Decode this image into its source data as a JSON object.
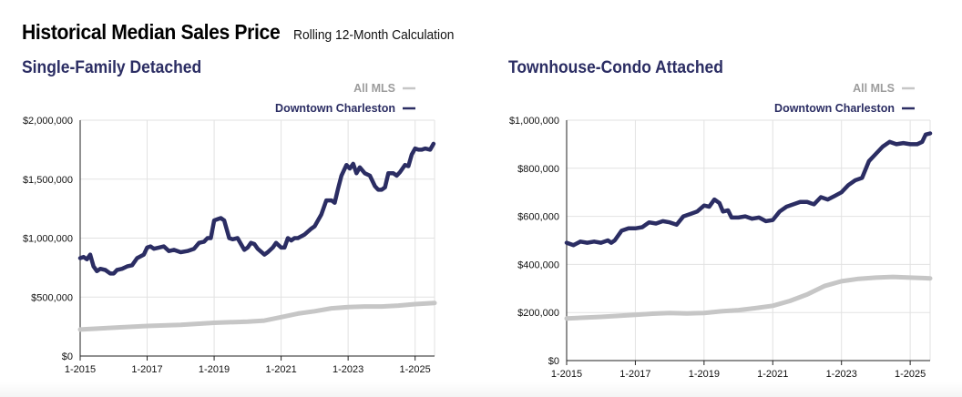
{
  "header": {
    "title": "Historical Median Sales Price",
    "subtitle": "Rolling 12-Month Calculation"
  },
  "colors": {
    "downtown": "#2b2d63",
    "all_mls": "#c6c6c6",
    "grid": "#e2e2e2",
    "axis": "#222222"
  },
  "chart_data": [
    {
      "type": "line",
      "title": "Single-Family Detached",
      "x_labels": [
        "1-2015",
        "1-2017",
        "1-2019",
        "1-2021",
        "1-2023",
        "1-2025"
      ],
      "x_tick_years": [
        2015,
        2017,
        2019,
        2021,
        2023,
        2025
      ],
      "xlim": [
        2015.0,
        2025.58
      ],
      "ylim": [
        0,
        2000000
      ],
      "y_ticks": [
        0,
        500000,
        1000000,
        1500000,
        2000000
      ],
      "y_tick_labels": [
        "$0",
        "$500,000",
        "$1,000,000",
        "$1,500,000",
        "$2,000,000"
      ],
      "legend": [
        {
          "name": "All MLS",
          "color": "#c6c6c6"
        },
        {
          "name": "Downtown Charleston",
          "color": "#2b2d63"
        }
      ],
      "series": [
        {
          "name": "Downtown Charleston",
          "color": "#2b2d63",
          "x": [
            2015.0,
            2015.1,
            2015.2,
            2015.3,
            2015.4,
            2015.5,
            2015.6,
            2015.75,
            2015.9,
            2016.0,
            2016.1,
            2016.25,
            2016.4,
            2016.55,
            2016.7,
            2016.9,
            2017.0,
            2017.1,
            2017.2,
            2017.35,
            2017.5,
            2017.65,
            2017.8,
            2018.0,
            2018.2,
            2018.4,
            2018.55,
            2018.7,
            2018.8,
            2018.9,
            2019.0,
            2019.1,
            2019.2,
            2019.3,
            2019.45,
            2019.55,
            2019.7,
            2019.8,
            2019.9,
            2020.0,
            2020.1,
            2020.2,
            2020.3,
            2020.5,
            2020.6,
            2020.75,
            2020.85,
            2021.0,
            2021.1,
            2021.2,
            2021.3,
            2021.4,
            2021.5,
            2021.7,
            2021.9,
            2022.0,
            2022.2,
            2022.35,
            2022.5,
            2022.6,
            2022.7,
            2022.8,
            2022.95,
            2023.05,
            2023.15,
            2023.25,
            2023.35,
            2023.5,
            2023.65,
            2023.8,
            2023.9,
            2024.0,
            2024.1,
            2024.2,
            2024.35,
            2024.45,
            2024.55,
            2024.7,
            2024.8,
            2024.9,
            2025.0,
            2025.1,
            2025.2,
            2025.3,
            2025.45,
            2025.55
          ],
          "values": [
            830000,
            840000,
            820000,
            860000,
            760000,
            720000,
            740000,
            730000,
            700000,
            700000,
            730000,
            740000,
            760000,
            770000,
            830000,
            860000,
            920000,
            930000,
            910000,
            920000,
            930000,
            890000,
            900000,
            880000,
            890000,
            910000,
            960000,
            970000,
            1000000,
            1000000,
            1150000,
            1160000,
            1170000,
            1150000,
            1000000,
            990000,
            1000000,
            950000,
            900000,
            920000,
            960000,
            950000,
            910000,
            860000,
            880000,
            920000,
            960000,
            920000,
            920000,
            1000000,
            980000,
            1000000,
            1000000,
            1030000,
            1080000,
            1100000,
            1200000,
            1320000,
            1320000,
            1300000,
            1420000,
            1530000,
            1620000,
            1590000,
            1630000,
            1550000,
            1600000,
            1550000,
            1530000,
            1440000,
            1410000,
            1410000,
            1430000,
            1550000,
            1550000,
            1530000,
            1560000,
            1620000,
            1610000,
            1710000,
            1760000,
            1750000,
            1750000,
            1760000,
            1750000,
            1800000
          ]
        },
        {
          "name": "All MLS",
          "color": "#c6c6c6",
          "x": [
            2015.0,
            2016.0,
            2017.0,
            2018.0,
            2019.0,
            2020.0,
            2020.5,
            2021.0,
            2021.5,
            2022.0,
            2022.5,
            2023.0,
            2023.5,
            2024.0,
            2024.5,
            2025.0,
            2025.58
          ],
          "values": [
            225000,
            240000,
            255000,
            265000,
            282000,
            292000,
            300000,
            330000,
            360000,
            380000,
            405000,
            415000,
            420000,
            420000,
            428000,
            440000,
            450000
          ]
        }
      ]
    },
    {
      "type": "line",
      "title": "Townhouse-Condo Attached",
      "x_labels": [
        "1-2015",
        "1-2017",
        "1-2019",
        "1-2021",
        "1-2023",
        "1-2025"
      ],
      "x_tick_years": [
        2015,
        2017,
        2019,
        2021,
        2023,
        2025
      ],
      "xlim": [
        2015.0,
        2025.58
      ],
      "ylim": [
        0,
        1000000
      ],
      "y_ticks": [
        0,
        200000,
        400000,
        600000,
        800000,
        1000000
      ],
      "y_tick_labels": [
        "$0",
        "$200,000",
        "$400,000",
        "$600,000",
        "$800,000",
        "$1,000,000"
      ],
      "legend": [
        {
          "name": "All MLS",
          "color": "#c6c6c6"
        },
        {
          "name": "Downtown Charleston",
          "color": "#2b2d63"
        }
      ],
      "series": [
        {
          "name": "Downtown Charleston",
          "color": "#2b2d63",
          "x": [
            2015.0,
            2015.2,
            2015.4,
            2015.6,
            2015.8,
            2016.0,
            2016.2,
            2016.3,
            2016.4,
            2016.6,
            2016.8,
            2017.0,
            2017.2,
            2017.4,
            2017.6,
            2017.8,
            2018.0,
            2018.2,
            2018.4,
            2018.6,
            2018.8,
            2019.0,
            2019.15,
            2019.3,
            2019.45,
            2019.55,
            2019.7,
            2019.8,
            2020.0,
            2020.2,
            2020.4,
            2020.6,
            2020.8,
            2021.0,
            2021.2,
            2021.4,
            2021.6,
            2021.8,
            2022.0,
            2022.2,
            2022.4,
            2022.6,
            2022.8,
            2023.0,
            2023.2,
            2023.4,
            2023.6,
            2023.8,
            2024.0,
            2024.2,
            2024.4,
            2024.6,
            2024.8,
            2025.0,
            2025.2,
            2025.35,
            2025.45,
            2025.58
          ],
          "values": [
            490000,
            480000,
            495000,
            490000,
            495000,
            490000,
            500000,
            490000,
            500000,
            540000,
            550000,
            550000,
            555000,
            575000,
            570000,
            580000,
            575000,
            565000,
            600000,
            610000,
            620000,
            645000,
            640000,
            670000,
            655000,
            620000,
            625000,
            595000,
            595000,
            600000,
            590000,
            595000,
            580000,
            585000,
            620000,
            640000,
            650000,
            660000,
            660000,
            650000,
            680000,
            670000,
            685000,
            700000,
            730000,
            750000,
            760000,
            830000,
            860000,
            890000,
            910000,
            900000,
            905000,
            900000,
            900000,
            910000,
            940000,
            945000
          ]
        },
        {
          "name": "All MLS",
          "color": "#c6c6c6",
          "x": [
            2015.0,
            2016.0,
            2017.0,
            2017.5,
            2018.0,
            2018.5,
            2019.0,
            2019.5,
            2020.0,
            2020.5,
            2021.0,
            2021.5,
            2022.0,
            2022.5,
            2023.0,
            2023.5,
            2024.0,
            2024.5,
            2025.0,
            2025.58
          ],
          "values": [
            175000,
            182000,
            190000,
            195000,
            198000,
            196000,
            198000,
            205000,
            210000,
            218000,
            228000,
            248000,
            275000,
            310000,
            330000,
            340000,
            345000,
            348000,
            345000,
            342000
          ]
        }
      ]
    }
  ]
}
